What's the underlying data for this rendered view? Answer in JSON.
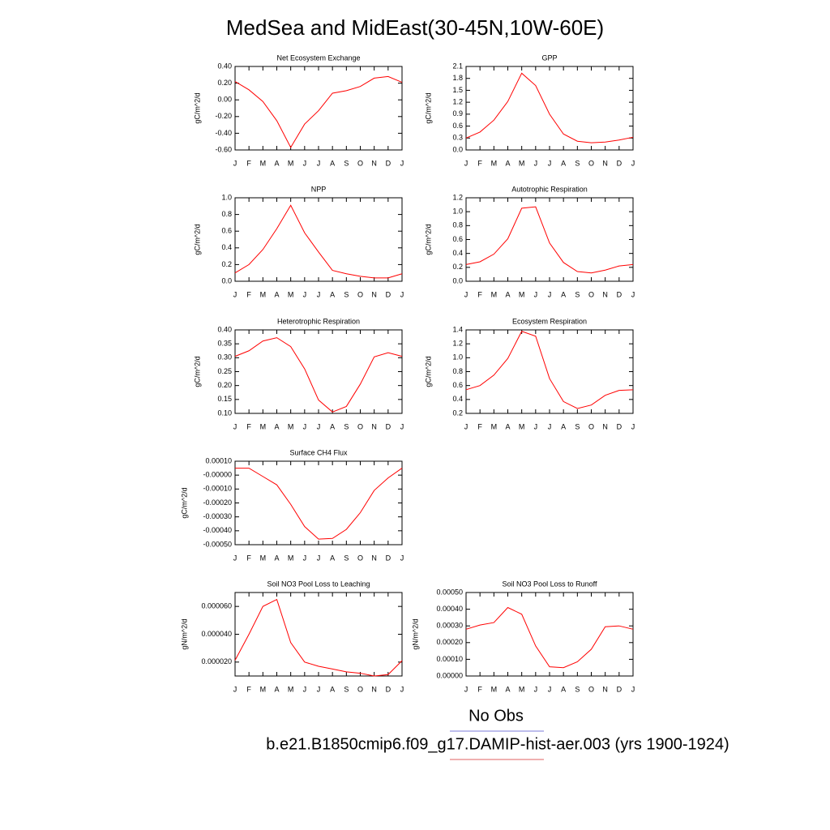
{
  "title": "MedSea and MidEast(30-45N,10W-60E)",
  "legend": [
    {
      "label": "No Obs",
      "color": "#7b7bd9"
    },
    {
      "label": "b.e21.B1850cmip6.f09_g17.DAMIP-hist-aer.003 (yrs 1900-1924)",
      "color": "#e06060"
    }
  ],
  "chart_data": [
    {
      "type": "line",
      "title": "Net Ecosystem Exchange",
      "ylabel": "gC/m^2/d",
      "color": "#ff0000",
      "categories": [
        "J",
        "F",
        "M",
        "A",
        "M",
        "J",
        "J",
        "A",
        "S",
        "O",
        "N",
        "D",
        "J"
      ],
      "values": [
        0.22,
        0.12,
        -0.02,
        -0.25,
        -0.57,
        -0.29,
        -0.13,
        0.08,
        0.11,
        0.16,
        0.26,
        0.28,
        0.21
      ],
      "ylim": [
        -0.6,
        0.4
      ],
      "yticks": [
        {
          "value": -0.6,
          "label": "-0.60"
        },
        {
          "value": -0.4,
          "label": "-0.40"
        },
        {
          "value": -0.2,
          "label": "-0.20"
        },
        {
          "value": 0,
          "label": "0.00"
        },
        {
          "value": 0.2,
          "label": "0.20"
        },
        {
          "value": 0.4,
          "label": "0.40"
        }
      ]
    },
    {
      "type": "line",
      "title": "GPP",
      "ylabel": "gC/m^2/d",
      "color": "#ff0000",
      "categories": [
        "J",
        "F",
        "M",
        "A",
        "M",
        "J",
        "J",
        "A",
        "S",
        "O",
        "N",
        "D",
        "J"
      ],
      "values": [
        0.3,
        0.45,
        0.75,
        1.22,
        1.93,
        1.62,
        0.9,
        0.4,
        0.22,
        0.18,
        0.2,
        0.25,
        0.32
      ],
      "ylim": [
        0,
        2.1
      ],
      "yticks": [
        {
          "value": 0,
          "label": "0.0"
        },
        0.3,
        0.6,
        0.9,
        1.2,
        1.5,
        1.8,
        2.1
      ]
    },
    {
      "type": "line",
      "title": "NPP",
      "ylabel": "gC/m^2/d",
      "color": "#ff0000",
      "categories": [
        "J",
        "F",
        "M",
        "A",
        "M",
        "J",
        "J",
        "A",
        "S",
        "O",
        "N",
        "D",
        "J"
      ],
      "values": [
        0.1,
        0.2,
        0.38,
        0.63,
        0.91,
        0.58,
        0.35,
        0.13,
        0.09,
        0.06,
        0.04,
        0.04,
        0.09
      ],
      "ylim": [
        0,
        1
      ],
      "yticks": [
        {
          "value": 0,
          "label": "0.0"
        },
        0.2,
        0.4,
        0.6,
        0.8,
        {
          "value": 1,
          "label": "1.0"
        }
      ]
    },
    {
      "type": "line",
      "title": "Autotrophic Respiration",
      "ylabel": "gC/m^2/d",
      "color": "#ff0000",
      "categories": [
        "J",
        "F",
        "M",
        "A",
        "M",
        "J",
        "J",
        "A",
        "S",
        "O",
        "N",
        "D",
        "J"
      ],
      "values": [
        0.24,
        0.28,
        0.39,
        0.61,
        1.05,
        1.07,
        0.55,
        0.27,
        0.14,
        0.12,
        0.16,
        0.22,
        0.24
      ],
      "ylim": [
        0,
        1.2
      ],
      "yticks": [
        {
          "value": 0,
          "label": "0.0"
        },
        0.2,
        0.4,
        0.6,
        0.8,
        {
          "value": 1,
          "label": "1.0"
        },
        1.2
      ]
    },
    {
      "type": "line",
      "title": "Heterotrophic Respiration",
      "ylabel": "gC/m^2/d",
      "color": "#ff0000",
      "categories": [
        "J",
        "F",
        "M",
        "A",
        "M",
        "J",
        "J",
        "A",
        "S",
        "O",
        "N",
        "D",
        "J"
      ],
      "values": [
        0.305,
        0.325,
        0.36,
        0.372,
        0.34,
        0.26,
        0.148,
        0.105,
        0.125,
        0.205,
        0.303,
        0.318,
        0.305
      ],
      "ylim": [
        0.1,
        0.4
      ],
      "yticks": [
        {
          "value": 0.1,
          "label": "0.10"
        },
        0.15,
        {
          "value": 0.2,
          "label": "0.20"
        },
        0.25,
        {
          "value": 0.3,
          "label": "0.30"
        },
        0.35,
        {
          "value": 0.4,
          "label": "0.40"
        }
      ]
    },
    {
      "type": "line",
      "title": "Ecosystem Respiration",
      "ylabel": "gC/m^2/d",
      "color": "#ff0000",
      "categories": [
        "J",
        "F",
        "M",
        "A",
        "M",
        "J",
        "J",
        "A",
        "S",
        "O",
        "N",
        "D",
        "J"
      ],
      "values": [
        0.54,
        0.6,
        0.75,
        0.99,
        1.38,
        1.31,
        0.7,
        0.37,
        0.27,
        0.32,
        0.46,
        0.53,
        0.54
      ],
      "ylim": [
        0.2,
        1.4
      ],
      "yticks": [
        0.2,
        0.4,
        0.6,
        0.8,
        {
          "value": 1,
          "label": "1.0"
        },
        1.2,
        1.4
      ]
    },
    {
      "type": "line",
      "title": "Surface CH4 Flux",
      "ylabel": "gC/m^2/d",
      "color": "#ff0000",
      "categories": [
        "J",
        "F",
        "M",
        "A",
        "M",
        "J",
        "J",
        "A",
        "S",
        "O",
        "N",
        "D",
        "J"
      ],
      "values": [
        5e-05,
        5e-05,
        -1e-05,
        -7e-05,
        -0.00021,
        -0.00037,
        -0.00046,
        -0.000455,
        -0.00039,
        -0.00027,
        -0.00011,
        -2e-05,
        5e-05
      ],
      "ylim": [
        -0.0005,
        0.0001
      ],
      "yticks": [
        {
          "value": -0.0005,
          "label": "-0.00050"
        },
        {
          "value": -0.0004,
          "label": "-0.00040"
        },
        {
          "value": -0.0003,
          "label": "-0.00030"
        },
        {
          "value": -0.0002,
          "label": "-0.00020"
        },
        {
          "value": -0.0001,
          "label": "-0.00010"
        },
        {
          "value": 0,
          "label": "-0.00000"
        },
        {
          "value": 0.0001,
          "label": "0.00010"
        }
      ]
    },
    {
      "type": "line",
      "title": "Soil NO3 Pool Loss to Leaching",
      "ylabel": "gN/m^2/d",
      "color": "#ff0000",
      "categories": [
        "J",
        "F",
        "M",
        "A",
        "M",
        "J",
        "J",
        "A",
        "S",
        "O",
        "N",
        "D",
        "J"
      ],
      "values": [
        2.13e-05,
        4e-05,
        6e-05,
        6.5e-05,
        3.4e-05,
        2e-05,
        1.7e-05,
        1.5e-05,
        1.3e-05,
        1.2e-05,
        1e-05,
        1.1e-05,
        2.1e-05
      ],
      "ylim": [
        1e-05,
        7e-05
      ],
      "yticks": [
        {
          "value": 2e-05,
          "label": "0.000020"
        },
        {
          "value": 4e-05,
          "label": "0.000040"
        },
        {
          "value": 6e-05,
          "label": "0.000060"
        }
      ]
    },
    {
      "type": "line",
      "title": "Soil NO3 Pool Loss to Runoff",
      "ylabel": "gN/m^2/d",
      "color": "#ff0000",
      "categories": [
        "J",
        "F",
        "M",
        "A",
        "M",
        "J",
        "J",
        "A",
        "S",
        "O",
        "N",
        "D",
        "J"
      ],
      "values": [
        0.00028,
        0.000305,
        0.00032,
        0.00041,
        0.00037,
        0.00018,
        5.5e-05,
        5e-05,
        8.5e-05,
        0.00016,
        0.000295,
        0.0003,
        0.00028
      ],
      "ylim": [
        0,
        0.0005
      ],
      "yticks": [
        {
          "value": 0,
          "label": "0.00000"
        },
        {
          "value": 0.0001,
          "label": "0.00010"
        },
        {
          "value": 0.0002,
          "label": "0.00020"
        },
        {
          "value": 0.0003,
          "label": "0.00030"
        },
        {
          "value": 0.0004,
          "label": "0.00040"
        },
        {
          "value": 0.0005,
          "label": "0.00050"
        }
      ]
    }
  ]
}
